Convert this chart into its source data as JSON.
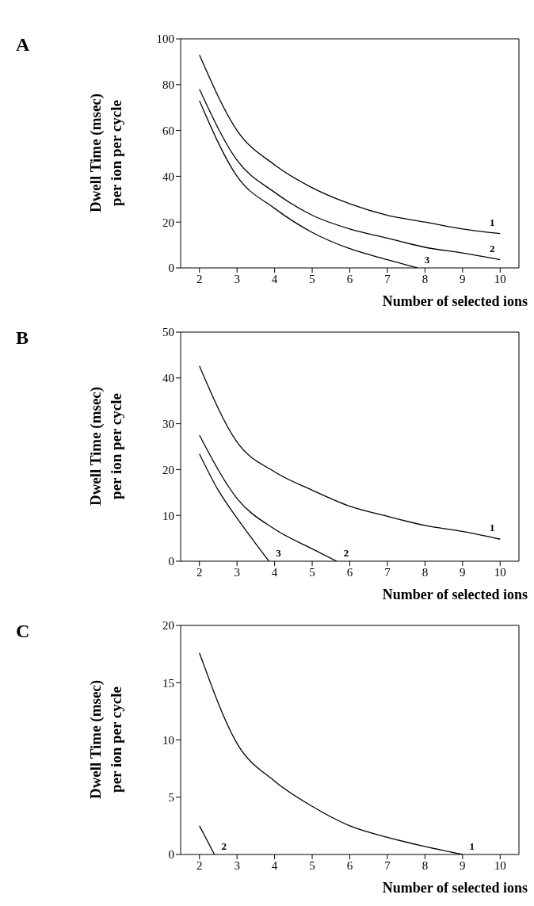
{
  "chart_data": [
    {
      "type": "line",
      "annotations": [
        "A"
      ],
      "xlabel": "Number of selected ions",
      "ylabel": "Dwell Time (msec)\nper ion per cycle",
      "xlim": [
        1.5,
        10.5
      ],
      "xticks": [
        2,
        3,
        4,
        5,
        6,
        7,
        8,
        9,
        10
      ],
      "ylim": [
        0,
        100
      ],
      "yticks": [
        0,
        20,
        40,
        60,
        80,
        100
      ],
      "series": [
        {
          "name": "1",
          "color": "#000000",
          "x": [
            2,
            3,
            4,
            5,
            6,
            7,
            8,
            9,
            10
          ],
          "values": [
            93,
            60,
            45,
            35,
            28,
            23,
            20,
            17,
            15
          ]
        },
        {
          "name": "2",
          "color": "#000000",
          "x": [
            2,
            3,
            4,
            5,
            6,
            7,
            8,
            9,
            10
          ],
          "values": [
            78,
            47,
            33,
            23,
            17,
            13,
            9,
            6.5,
            3.6
          ]
        },
        {
          "name": "3",
          "color": "#000000",
          "x": [
            2,
            3,
            4,
            5,
            6,
            7,
            7.8
          ],
          "values": [
            73,
            40,
            26,
            15.5,
            8.4,
            3.6,
            0
          ]
        }
      ]
    },
    {
      "type": "line",
      "annotations": [
        "B"
      ],
      "xlabel": "Number of selected ions",
      "ylabel": "Dwell Time (msec)\nper ion per cycle",
      "xlim": [
        1.5,
        10.5
      ],
      "xticks": [
        2,
        3,
        4,
        5,
        6,
        7,
        8,
        9,
        10
      ],
      "ylim": [
        0,
        50
      ],
      "yticks": [
        0,
        10,
        20,
        30,
        40,
        50
      ],
      "series": [
        {
          "name": "1",
          "color": "#000000",
          "x": [
            2,
            3,
            4,
            5,
            6,
            7,
            8,
            9,
            10
          ],
          "values": [
            42.6,
            26,
            19.5,
            15.5,
            12,
            9.8,
            7.8,
            6.5,
            4.8
          ]
        },
        {
          "name": "2",
          "color": "#000000",
          "x": [
            2,
            3,
            4,
            5,
            5.65
          ],
          "values": [
            27.5,
            13.7,
            7,
            2.7,
            0
          ]
        },
        {
          "name": "3",
          "color": "#000000",
          "x": [
            2,
            2.5,
            3,
            3.5,
            3.85
          ],
          "values": [
            23.4,
            15.5,
            9.4,
            3.8,
            0
          ]
        }
      ]
    },
    {
      "type": "line",
      "annotations": [
        "C"
      ],
      "xlabel": "Number of selected ions",
      "ylabel": "Dwell Time (msec)\nper ion per cycle",
      "xlim": [
        1.5,
        10.5
      ],
      "xticks": [
        2,
        3,
        4,
        5,
        6,
        7,
        8,
        9,
        10
      ],
      "ylim": [
        0,
        20
      ],
      "yticks": [
        0,
        5,
        10,
        15,
        20
      ],
      "series": [
        {
          "name": "1",
          "color": "#000000",
          "x": [
            2,
            3,
            4,
            5,
            6,
            7,
            8,
            9
          ],
          "values": [
            17.6,
            9.7,
            6.4,
            4.2,
            2.5,
            1.5,
            0.7,
            0
          ]
        },
        {
          "name": "2",
          "color": "#000000",
          "x": [
            2,
            2.4
          ],
          "values": [
            2.5,
            0
          ]
        }
      ]
    }
  ]
}
